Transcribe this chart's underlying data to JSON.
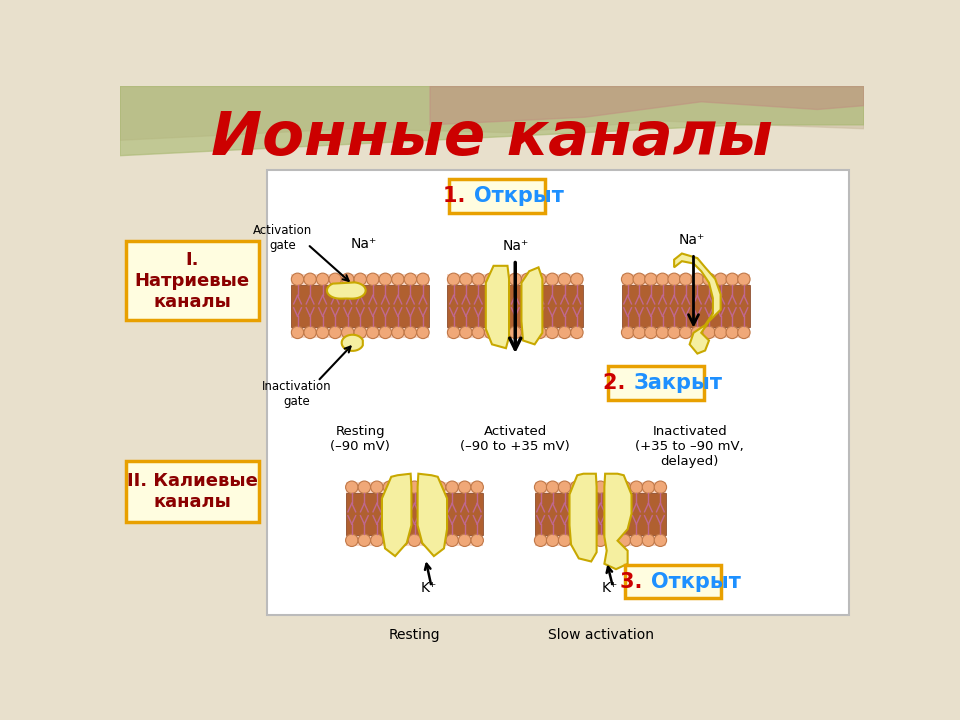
{
  "title": "Ионные каналы",
  "title_color": "#CC0000",
  "bg_color": "#E8E0CC",
  "box_bg": "#FFFDE0",
  "box_border": "#E8A000",
  "label1": "I.\nНатриевые\nканалы",
  "label2": "II. Калиевые\nканалы",
  "label_color": "#8B0000",
  "badge1_text": "1. Открыт",
  "badge2_text": "2. Закрыт",
  "badge3_text": "3. Открыт",
  "badge_num_color": "#CC0000",
  "badge_text_color": "#1E90FF",
  "membrane_fill": "#C87040",
  "membrane_inner": "#F0C0A0",
  "bead_color": "#F0A878",
  "bead_edge": "#C07848",
  "gate_color": "#F5E070",
  "gate_edge": "#C8A800",
  "main_bg": "#FFFFFF",
  "main_border": "#CCCCCC",
  "wave1_color": "#C8B89A",
  "wave2_color": "#A8B870",
  "wave3_color": "#C09080"
}
